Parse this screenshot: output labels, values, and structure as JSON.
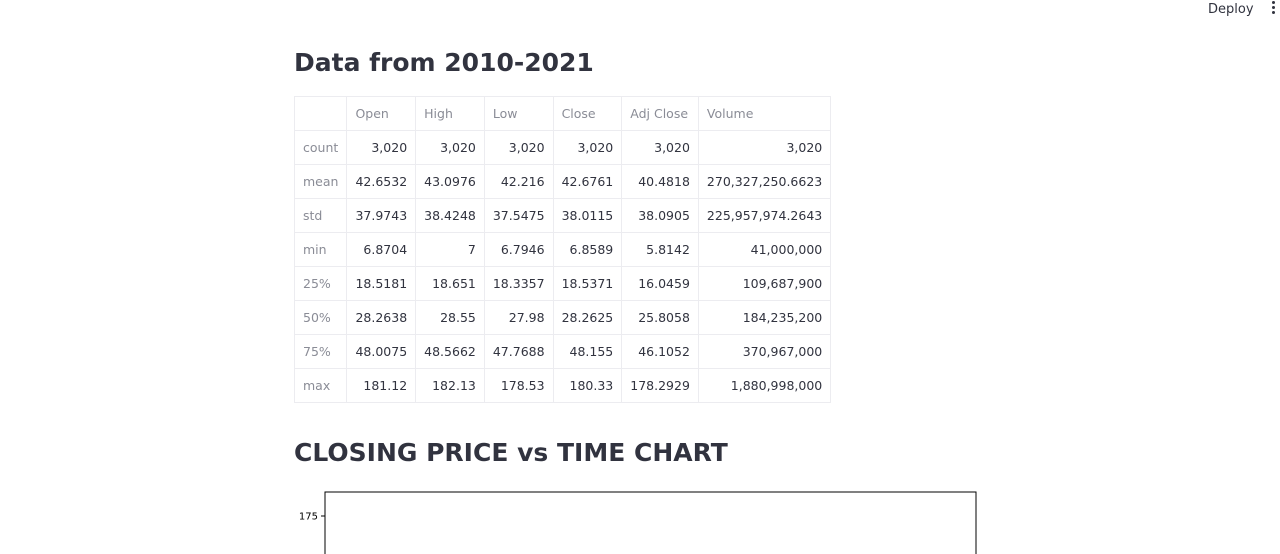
{
  "toolbar": {
    "deploy": "Deploy"
  },
  "section1": {
    "title": "Data from 2010-2021"
  },
  "table": {
    "columns": [
      "Open",
      "High",
      "Low",
      "Close",
      "Adj Close",
      "Volume"
    ],
    "rows": [
      [
        "count",
        "3,020",
        "3,020",
        "3,020",
        "3,020",
        "3,020",
        "3,020"
      ],
      [
        "mean",
        "42.6532",
        "43.0976",
        "42.216",
        "42.6761",
        "40.4818",
        "270,327,250.6623"
      ],
      [
        "std",
        "37.9743",
        "38.4248",
        "37.5475",
        "38.0115",
        "38.0905",
        "225,957,974.2643"
      ],
      [
        "min",
        "6.8704",
        "7",
        "6.7946",
        "6.8589",
        "5.8142",
        "41,000,000"
      ],
      [
        "25%",
        "18.5181",
        "18.651",
        "18.3357",
        "18.5371",
        "16.0459",
        "109,687,900"
      ],
      [
        "50%",
        "28.2638",
        "28.55",
        "27.98",
        "28.2625",
        "25.8058",
        "184,235,200"
      ],
      [
        "75%",
        "48.0075",
        "48.5662",
        "47.7688",
        "48.155",
        "46.1052",
        "370,967,000"
      ],
      [
        "max",
        "181.12",
        "182.13",
        "178.53",
        "180.33",
        "178.2929",
        "1,880,998,000"
      ]
    ]
  },
  "section2": {
    "title": "CLOSING PRICE vs TIME CHART",
    "chart": {
      "type": "line",
      "yticks": [
        175
      ]
    }
  }
}
